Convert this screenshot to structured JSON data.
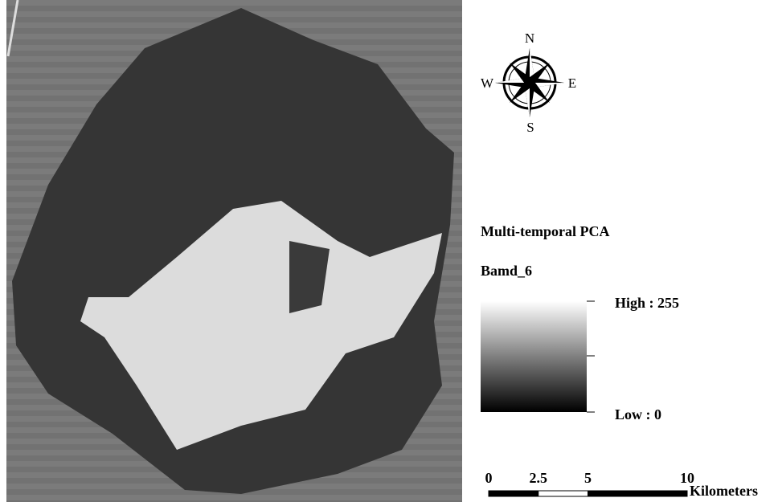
{
  "compass": {
    "north": "N",
    "east": "E",
    "south": "S",
    "west": "W"
  },
  "legend": {
    "title": "Multi-temporal PCA",
    "band": "Bamd_6",
    "high": "High : 255",
    "low": "Low : 0"
  },
  "scale_bar": {
    "ticks": [
      0,
      2.5,
      5,
      10
    ],
    "unit": "Kilometers"
  }
}
